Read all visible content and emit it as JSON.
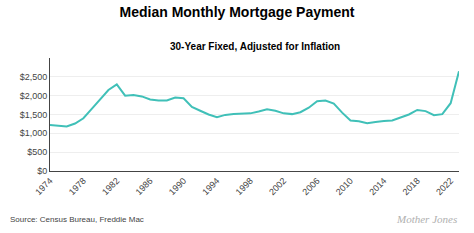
{
  "chart_data": {
    "type": "line",
    "title": "Median Monthly Mortgage Payment",
    "subtitle": "30-Year Fixed, Adjusted for Inflation",
    "annotations": [
      "Source: Census Bureau, Freddie Mac",
      "Mother Jones"
    ],
    "x": [
      1974,
      1975,
      1976,
      1977,
      1978,
      1979,
      1980,
      1981,
      1982,
      1983,
      1984,
      1985,
      1986,
      1987,
      1988,
      1989,
      1990,
      1991,
      1992,
      1993,
      1994,
      1995,
      1996,
      1997,
      1998,
      1999,
      2000,
      2001,
      2002,
      2003,
      2004,
      2005,
      2006,
      2007,
      2008,
      2009,
      2010,
      2011,
      2012,
      2013,
      2014,
      2015,
      2016,
      2017,
      2018,
      2019,
      2020,
      2021,
      2022,
      2023
    ],
    "values": [
      1220,
      1200,
      1180,
      1260,
      1400,
      1650,
      1900,
      2150,
      2300,
      2000,
      2020,
      1980,
      1900,
      1870,
      1870,
      1950,
      1930,
      1700,
      1600,
      1500,
      1430,
      1490,
      1510,
      1510,
      1530,
      1580,
      1640,
      1600,
      1530,
      1510,
      1560,
      1680,
      1850,
      1870,
      1790,
      1550,
      1340,
      1320,
      1270,
      1300,
      1330,
      1340,
      1430,
      1500,
      1620,
      1590,
      1480,
      1510,
      1800,
      2650
    ],
    "color": "#40c0b8",
    "xlim": [
      1974,
      2023
    ],
    "xticks": [
      1974,
      1978,
      1982,
      1986,
      1990,
      1994,
      1998,
      2002,
      2006,
      2010,
      2014,
      2018,
      2022
    ],
    "ylim": [
      0,
      3000
    ],
    "yticks": [
      {
        "value": 0,
        "label": "$0"
      },
      {
        "value": 500,
        "label": "$500"
      },
      {
        "value": 1000,
        "label": "$1,000"
      },
      {
        "value": 1500,
        "label": "$1,500"
      },
      {
        "value": 2000,
        "label": "$2,000"
      },
      {
        "value": 2500,
        "label": "$2,500"
      }
    ],
    "grid": true
  }
}
